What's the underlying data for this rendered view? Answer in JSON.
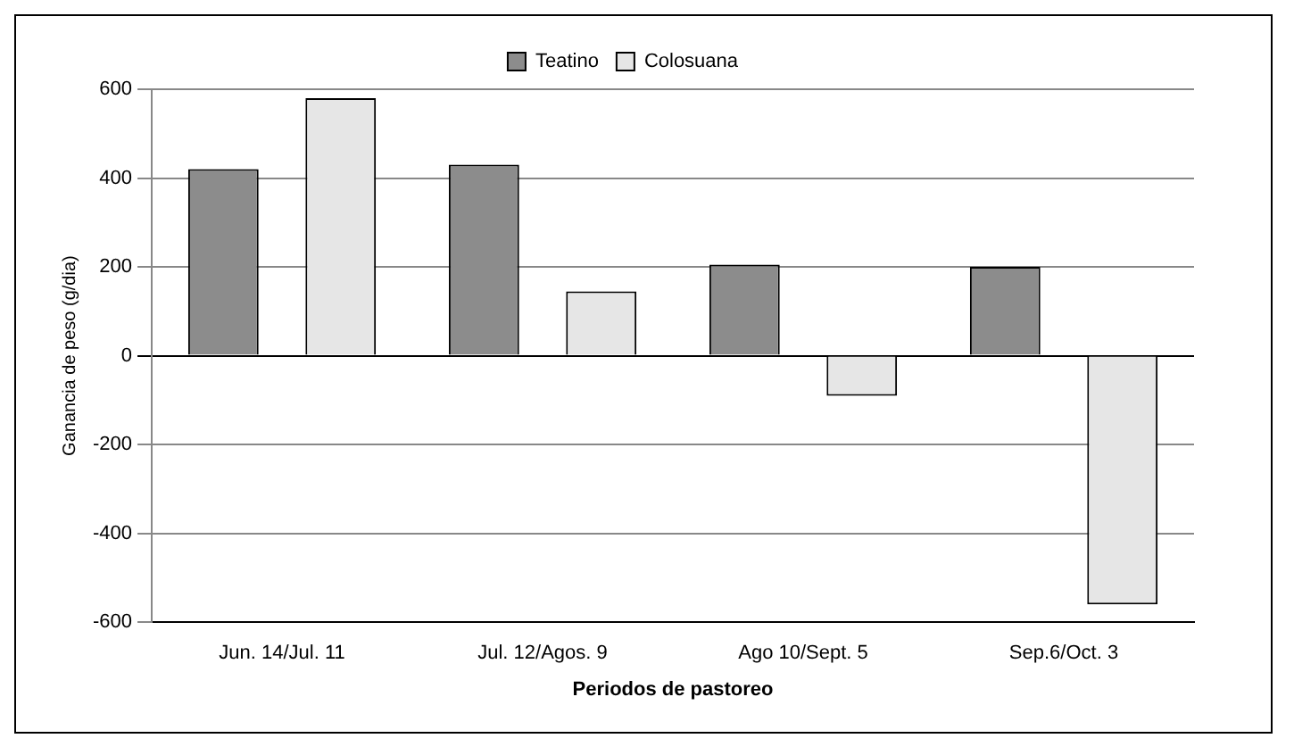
{
  "chart_data": {
    "type": "bar",
    "categories": [
      "Jun. 14/Jul. 11",
      "Jul. 12/Agos. 9",
      "Ago 10/Sept. 5",
      "Sep.6/Oct. 3"
    ],
    "series": [
      {
        "name": "Teatino",
        "color": "#8c8c8c",
        "values": [
          420,
          430,
          205,
          200
        ]
      },
      {
        "name": "Colosuana",
        "color": "#e6e6e6",
        "values": [
          580,
          145,
          -90,
          -560
        ]
      }
    ],
    "xlabel": "Periodos de pastoreo",
    "ylabel": "Ganancia de peso (g/dia)",
    "ylim": [
      -600,
      600
    ],
    "yticks": [
      -600,
      -400,
      -200,
      0,
      200,
      400,
      600
    ],
    "grid": "y",
    "legend": "top"
  }
}
